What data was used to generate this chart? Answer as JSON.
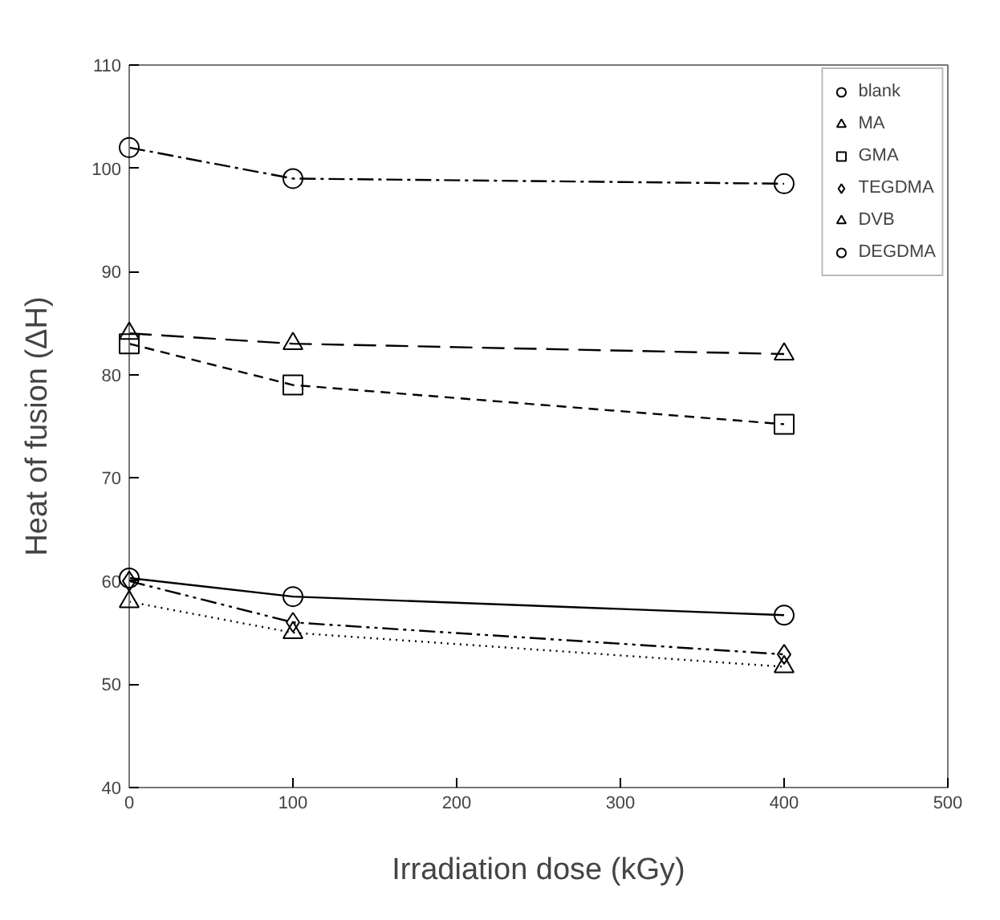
{
  "chart_data": {
    "type": "line",
    "xlabel": "Irradiation dose (kGy)",
    "ylabel": "Heat of fusion (ΔH)",
    "x": [
      0,
      100,
      400
    ],
    "xlim": [
      0,
      500
    ],
    "xticks": [
      0,
      100,
      200,
      300,
      400,
      500
    ],
    "ylim": [
      40,
      110
    ],
    "yticks": [
      40,
      50,
      60,
      70,
      80,
      90,
      100,
      110
    ],
    "grid": false,
    "legend": "top right",
    "series": [
      {
        "name": "blank",
        "color": "#000000",
        "marker": "circle",
        "line_style": "solid",
        "values": [
          60.3,
          58.5,
          56.7
        ]
      },
      {
        "name": "MA",
        "color": "#000000",
        "marker": "triangle",
        "line_style": "dotted",
        "values": [
          58,
          55,
          51.7
        ]
      },
      {
        "name": "GMA",
        "color": "#000000",
        "marker": "square",
        "line_style": "dashed",
        "values": [
          83,
          79,
          75.2
        ]
      },
      {
        "name": "TEGDMA",
        "color": "#000000",
        "marker": "diamond",
        "line_style": "dashdotdot",
        "values": [
          60,
          56,
          52.9
        ]
      },
      {
        "name": "DVB",
        "color": "#000000",
        "marker": "triangle",
        "line_style": "longdash",
        "values": [
          84,
          83,
          82
        ]
      },
      {
        "name": "DEGDMA",
        "color": "#000000",
        "marker": "circle",
        "line_style": "dashdot",
        "values": [
          102,
          99,
          98.5
        ]
      }
    ]
  }
}
